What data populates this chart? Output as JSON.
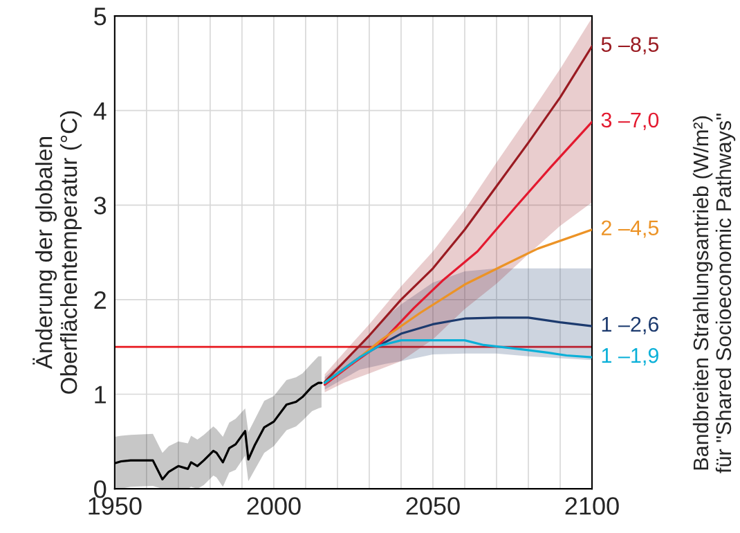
{
  "chart_data": {
    "type": "line",
    "ylabel": "Änderung der globalen\nOberflächentemperatur (°C)",
    "y2label": "Bandbreiten Strahlungsantrieb (W/m²)\nfür \"Shared Socioeconomic Pathways\"",
    "xlim": [
      1950,
      2100
    ],
    "xticks": [
      1950,
      {
        "value": 1960,
        "label": null
      },
      {
        "value": 1970,
        "label": null
      },
      {
        "value": 1980,
        "label": null
      },
      {
        "value": 1990,
        "label": null
      },
      2000,
      {
        "value": 2010,
        "label": null
      },
      {
        "value": 2020,
        "label": null
      },
      {
        "value": 2030,
        "label": null
      },
      {
        "value": 2040,
        "label": null
      },
      2050,
      {
        "value": 2060,
        "label": null
      },
      {
        "value": 2070,
        "label": null
      },
      {
        "value": 2080,
        "label": null
      },
      {
        "value": 2090,
        "label": null
      },
      2100
    ],
    "ylim": [
      0,
      5
    ],
    "yticks": [
      0,
      1,
      2,
      3,
      4,
      5
    ],
    "grid": true,
    "legend": false,
    "ref_lines": [
      {
        "axis": "y",
        "value": 1.5,
        "color": "#e8191f"
      }
    ],
    "series": [
      {
        "color": "#000000",
        "x": [
          1950,
          1952,
          1955,
          1962,
          1965,
          1967,
          1970,
          1973,
          1974,
          1976,
          1978,
          1981,
          1982,
          1984,
          1986,
          1988,
          1991,
          1992,
          1994,
          1997,
          2000,
          2004,
          2007,
          2009,
          2012,
          2014,
          2015
        ],
        "values": [
          0.27,
          0.29,
          0.3,
          0.3,
          0.1,
          0.18,
          0.24,
          0.21,
          0.28,
          0.24,
          0.3,
          0.4,
          0.38,
          0.28,
          0.43,
          0.47,
          0.61,
          0.31,
          0.46,
          0.65,
          0.71,
          0.89,
          0.92,
          0.97,
          1.08,
          1.12,
          1.12
        ],
        "lower": [
          0,
          0,
          0.02,
          0.03,
          0,
          0,
          0,
          0,
          0.02,
          0,
          0.04,
          0.14,
          0.12,
          0.02,
          0.17,
          0.2,
          0.35,
          0.08,
          0.2,
          0.38,
          0.45,
          0.62,
          0.66,
          0.72,
          0.82,
          0.85,
          0.86
        ],
        "upper": [
          0.55,
          0.56,
          0.57,
          0.58,
          0.38,
          0.45,
          0.5,
          0.48,
          0.56,
          0.52,
          0.57,
          0.66,
          0.63,
          0.55,
          0.7,
          0.74,
          0.85,
          0.6,
          0.73,
          0.93,
          0.98,
          1.15,
          1.18,
          1.22,
          1.33,
          1.4,
          1.4
        ]
      },
      {
        "name": "1 –2,6",
        "color": "#1c3a6e",
        "x": [
          2016,
          2027,
          2035,
          2040,
          2050,
          2060,
          2070,
          2080,
          2090,
          2100
        ],
        "values": [
          1.12,
          1.39,
          1.55,
          1.64,
          1.74,
          1.8,
          1.81,
          1.81,
          1.76,
          1.72
        ],
        "lower": [
          1.05,
          1.26,
          1.32,
          1.35,
          1.42,
          1.43,
          1.43,
          1.4,
          1.38,
          1.36
        ],
        "upper": [
          1.18,
          1.5,
          1.81,
          1.95,
          2.18,
          2.3,
          2.33,
          2.33,
          2.33,
          2.33
        ]
      },
      {
        "name": "5 –8,5",
        "color": "#9a1b22",
        "x": [
          2016,
          2022,
          2030,
          2040,
          2050,
          2060,
          2070,
          2080,
          2090,
          2100
        ],
        "values": [
          1.13,
          1.34,
          1.62,
          2.0,
          2.33,
          2.74,
          3.2,
          3.66,
          4.14,
          4.68
        ],
        "lower": [
          1.02,
          1.12,
          1.22,
          1.35,
          1.58,
          1.9,
          2.17,
          2.48,
          2.78,
          3.03
        ],
        "upper": [
          1.21,
          1.44,
          1.74,
          2.14,
          2.51,
          2.95,
          3.45,
          3.94,
          4.44,
          4.98
        ]
      },
      {
        "name": "3 –7,0",
        "color": "#e3192f",
        "x": [
          2016,
          2025,
          2033,
          2044,
          2053,
          2064,
          2076,
          2087,
          2100
        ],
        "values": [
          1.1,
          1.33,
          1.52,
          1.91,
          2.2,
          2.51,
          2.98,
          3.4,
          3.88
        ]
      },
      {
        "name": "2 –4,5",
        "color": "#ec9326",
        "x": [
          2016,
          2027,
          2034,
          2046,
          2060,
          2072,
          2083,
          2100
        ],
        "values": [
          1.12,
          1.39,
          1.58,
          1.86,
          2.16,
          2.36,
          2.54,
          2.74
        ]
      },
      {
        "name": "1 –1,9",
        "color": "#0ab0d8",
        "x": [
          2016,
          2027,
          2033,
          2040,
          2060,
          2066,
          2074,
          2086,
          2092,
          2100
        ],
        "values": [
          1.12,
          1.39,
          1.51,
          1.57,
          1.57,
          1.52,
          1.49,
          1.44,
          1.41,
          1.39
        ]
      }
    ]
  }
}
